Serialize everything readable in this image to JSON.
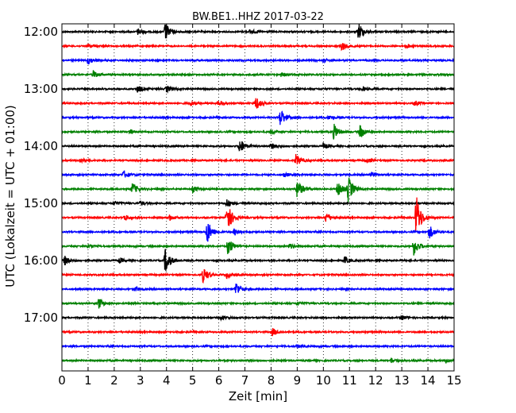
{
  "chart_data": {
    "type": "line",
    "title": "BW.BE1..HHZ 2017-03-22",
    "xlabel": "Zeit  [min]",
    "ylabel": "UTC (Lokalzeit = UTC + 01:00)",
    "xlim": [
      0,
      15
    ],
    "x_ticks": [
      0,
      1,
      2,
      3,
      4,
      5,
      6,
      7,
      8,
      9,
      10,
      11,
      12,
      13,
      14,
      15
    ],
    "x_tick_labels": [
      "0",
      "1",
      "2",
      "3",
      "4",
      "5",
      "6",
      "7",
      "8",
      "9",
      "10",
      "11",
      "12",
      "13",
      "14",
      "15"
    ],
    "y_tick_labels": [
      "12:00",
      "13:00",
      "14:00",
      "15:00",
      "16:00",
      "17:00"
    ],
    "y_tick_rows": [
      0,
      4,
      8,
      12,
      16,
      20
    ],
    "grid": "dotted vertical",
    "trace_colors": [
      "#000000",
      "#ff0000",
      "#0000ff",
      "#008000"
    ],
    "traces": [
      {
        "start": "12:00",
        "color": "#000000",
        "events": [
          {
            "t": 3.95,
            "amp": 12
          },
          {
            "t": 11.35,
            "amp": 12
          },
          {
            "t": 2.9,
            "amp": 4
          },
          {
            "t": 7.2,
            "amp": 3
          }
        ]
      },
      {
        "start": "12:15",
        "color": "#ff0000",
        "events": [
          {
            "t": 10.7,
            "amp": 6
          },
          {
            "t": 1.0,
            "amp": 3
          },
          {
            "t": 13.2,
            "amp": 2.5
          }
        ]
      },
      {
        "start": "12:30",
        "color": "#0000ff",
        "events": [
          {
            "t": 1.0,
            "amp": 5
          },
          {
            "t": 10.0,
            "amp": 2.5
          }
        ]
      },
      {
        "start": "12:45",
        "color": "#008000",
        "events": [
          {
            "t": 1.2,
            "amp": 5
          },
          {
            "t": 8.4,
            "amp": 3
          }
        ]
      },
      {
        "start": "13:00",
        "color": "#000000",
        "events": [
          {
            "t": 2.9,
            "amp": 5
          },
          {
            "t": 4.0,
            "amp": 4
          },
          {
            "t": 11.5,
            "amp": 3
          }
        ]
      },
      {
        "start": "13:15",
        "color": "#ff0000",
        "events": [
          {
            "t": 7.4,
            "amp": 9
          },
          {
            "t": 4.9,
            "amp": 3
          },
          {
            "t": 6.0,
            "amp": 3
          },
          {
            "t": 13.5,
            "amp": 3
          }
        ]
      },
      {
        "start": "13:30",
        "color": "#0000ff",
        "events": [
          {
            "t": 8.35,
            "amp": 12
          },
          {
            "t": 10.2,
            "amp": 3
          }
        ]
      },
      {
        "start": "13:45",
        "color": "#008000",
        "events": [
          {
            "t": 10.4,
            "amp": 10
          },
          {
            "t": 11.4,
            "amp": 9
          },
          {
            "t": 8.0,
            "amp": 3
          },
          {
            "t": 2.6,
            "amp": 3
          }
        ]
      },
      {
        "start": "14:00",
        "color": "#000000",
        "events": [
          {
            "t": 6.8,
            "amp": 10
          },
          {
            "t": 8.0,
            "amp": 4
          },
          {
            "t": 10.0,
            "amp": 4
          }
        ]
      },
      {
        "start": "14:15",
        "color": "#ff0000",
        "events": [
          {
            "t": 8.95,
            "amp": 8
          },
          {
            "t": 0.7,
            "amp": 3
          },
          {
            "t": 11.6,
            "amp": 3
          }
        ]
      },
      {
        "start": "14:30",
        "color": "#0000ff",
        "events": [
          {
            "t": 2.35,
            "amp": 5
          },
          {
            "t": 8.5,
            "amp": 3
          },
          {
            "t": 11.8,
            "amp": 3
          }
        ]
      },
      {
        "start": "14:45",
        "color": "#008000",
        "events": [
          {
            "t": 2.7,
            "amp": 8
          },
          {
            "t": 5.0,
            "amp": 4
          },
          {
            "t": 9.0,
            "amp": 12
          },
          {
            "t": 10.55,
            "amp": 10
          },
          {
            "t": 10.95,
            "amp": 16
          }
        ]
      },
      {
        "start": "15:00",
        "color": "#000000",
        "events": [
          {
            "t": 2.0,
            "amp": 3
          },
          {
            "t": 3.0,
            "amp": 3
          },
          {
            "t": 6.3,
            "amp": 5
          }
        ]
      },
      {
        "start": "15:15",
        "color": "#ff0000",
        "events": [
          {
            "t": 6.3,
            "amp": 22
          },
          {
            "t": 13.55,
            "amp": 30
          },
          {
            "t": 10.1,
            "amp": 7
          },
          {
            "t": 2.4,
            "amp": 4
          },
          {
            "t": 4.1,
            "amp": 4
          }
        ]
      },
      {
        "start": "15:30",
        "color": "#0000ff",
        "events": [
          {
            "t": 5.55,
            "amp": 16
          },
          {
            "t": 14.05,
            "amp": 9
          },
          {
            "t": 6.6,
            "amp": 4
          }
        ]
      },
      {
        "start": "15:45",
        "color": "#008000",
        "events": [
          {
            "t": 6.35,
            "amp": 12
          },
          {
            "t": 13.45,
            "amp": 12
          },
          {
            "t": 1.0,
            "amp": 3
          },
          {
            "t": 8.7,
            "amp": 3
          }
        ]
      },
      {
        "start": "16:00",
        "color": "#000000",
        "events": [
          {
            "t": 0.1,
            "amp": 6
          },
          {
            "t": 3.95,
            "amp": 16
          },
          {
            "t": 10.8,
            "amp": 5
          },
          {
            "t": 2.2,
            "amp": 3
          }
        ]
      },
      {
        "start": "16:15",
        "color": "#ff0000",
        "events": [
          {
            "t": 5.4,
            "amp": 10
          },
          {
            "t": 6.3,
            "amp": 4
          }
        ]
      },
      {
        "start": "16:30",
        "color": "#0000ff",
        "events": [
          {
            "t": 6.65,
            "amp": 9
          },
          {
            "t": 2.8,
            "amp": 3
          }
        ]
      },
      {
        "start": "16:45",
        "color": "#008000",
        "events": [
          {
            "t": 1.4,
            "amp": 7
          },
          {
            "t": 9.0,
            "amp": 3
          }
        ]
      },
      {
        "start": "17:00",
        "color": "#000000",
        "events": [
          {
            "t": 6.1,
            "amp": 3
          },
          {
            "t": 13.0,
            "amp": 3
          }
        ]
      },
      {
        "start": "17:15",
        "color": "#ff0000",
        "events": [
          {
            "t": 8.05,
            "amp": 5
          }
        ]
      },
      {
        "start": "17:30",
        "color": "#0000ff",
        "events": [
          {
            "t": 9.0,
            "amp": 2
          }
        ]
      },
      {
        "start": "17:45",
        "color": "#008000",
        "events": [
          {
            "t": 12.6,
            "amp": 3
          },
          {
            "t": 14.7,
            "amp": 3
          }
        ]
      }
    ]
  }
}
